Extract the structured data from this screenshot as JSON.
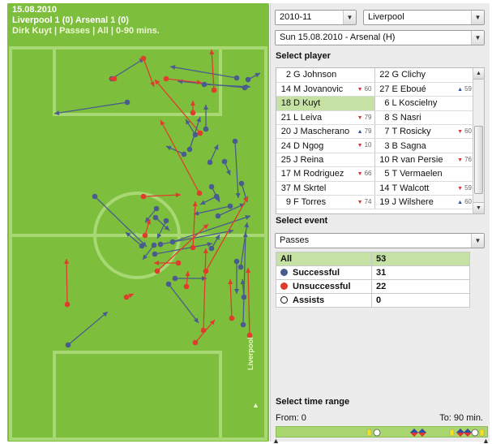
{
  "header": {
    "date": "15.08.2010",
    "match": "Liverpool 1 (0) Arsenal 1 (0)",
    "filter": "Dirk Kuyt | Passes | All | 0-90 mins."
  },
  "pitch": {
    "side_label": "Liverpool",
    "colors": {
      "grass": "#7dbe3c",
      "lines": "#a8d874",
      "successful": "#4a5c8e",
      "unsuccessful": "#e03c2e"
    }
  },
  "selectors": {
    "season": "2010-11",
    "team": "Liverpool",
    "match": "Sun 15.08.2010 - Arsenal (H)"
  },
  "select_player_title": "Select player",
  "players": [
    {
      "left": {
        "num": "2",
        "name": "G Johnson"
      },
      "right": {
        "num": "22",
        "name": "G Clichy"
      }
    },
    {
      "left": {
        "num": "14",
        "name": "M Jovanovic",
        "sub": "60",
        "dir": "down"
      },
      "right": {
        "num": "27",
        "name": "E Eboué",
        "sub": "59",
        "dir": "up"
      }
    },
    {
      "left": {
        "num": "18",
        "name": "D Kuyt"
      },
      "right": {
        "num": "6",
        "name": "L Koscielny"
      },
      "selected": true
    },
    {
      "left": {
        "num": "21",
        "name": "L Leiva",
        "sub": "79",
        "dir": "down"
      },
      "right": {
        "num": "8",
        "name": "S Nasri"
      }
    },
    {
      "left": {
        "num": "20",
        "name": "J Mascherano",
        "sub": "79",
        "dir": "up"
      },
      "right": {
        "num": "7",
        "name": "T Rosicky",
        "sub": "60",
        "dir": "down"
      }
    },
    {
      "left": {
        "num": "24",
        "name": "D Ngog",
        "sub": "10",
        "dir": "down"
      },
      "right": {
        "num": "3",
        "name": "B Sagna"
      }
    },
    {
      "left": {
        "num": "25",
        "name": "J Reina"
      },
      "right": {
        "num": "10",
        "name": "R van Persie",
        "sub": "76",
        "dir": "down"
      }
    },
    {
      "left": {
        "num": "17",
        "name": "M Rodriguez",
        "sub": "66",
        "dir": "down"
      },
      "right": {
        "num": "5",
        "name": "T Vermaelen"
      }
    },
    {
      "left": {
        "num": "37",
        "name": "M Skrtel"
      },
      "right": {
        "num": "14",
        "name": "T Walcott",
        "sub": "59",
        "dir": "down"
      }
    },
    {
      "left": {
        "num": "9",
        "name": "F Torres",
        "sub": "74",
        "dir": "down"
      },
      "right": {
        "num": "19",
        "name": "J Wilshere",
        "sub": "60",
        "dir": "up"
      }
    }
  ],
  "select_event_title": "Select event",
  "event": "Passes",
  "stats": {
    "all_label": "All",
    "all_value": "53",
    "successful_label": "Successful",
    "successful_value": "31",
    "unsuccessful_label": "Unsuccessful",
    "unsuccessful_value": "22",
    "assists_label": "Assists",
    "assists_value": "0"
  },
  "time_range": {
    "title": "Select time range",
    "from_label": "From: 0",
    "to_label": "To: 90 min."
  }
}
